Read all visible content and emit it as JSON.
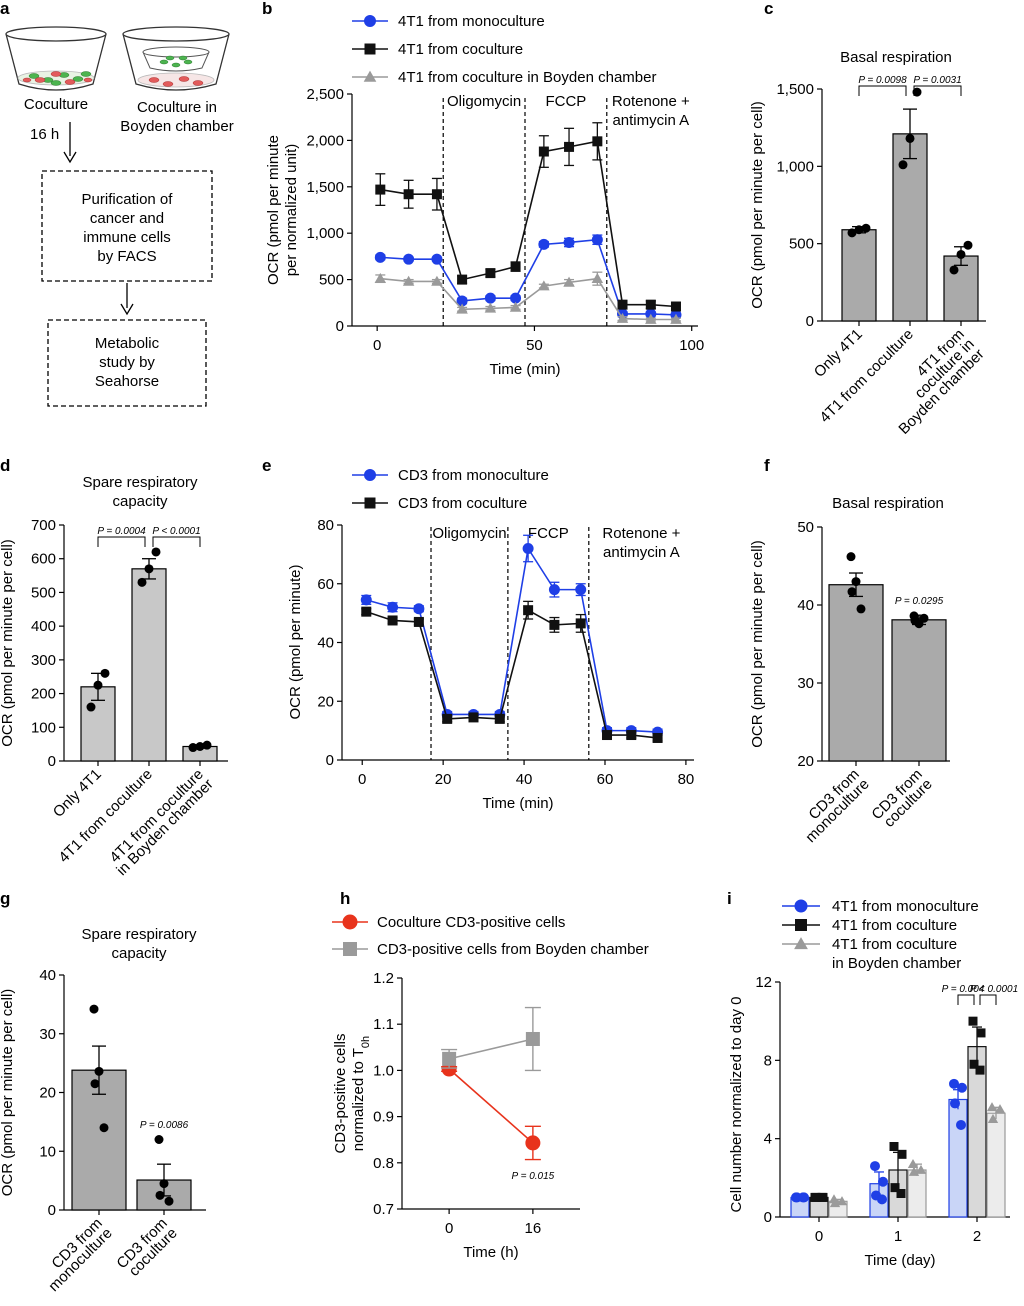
{
  "panel_labels": [
    "a",
    "b",
    "c",
    "d",
    "e",
    "f",
    "g",
    "h",
    "i"
  ],
  "flow": {
    "dish1_label": "Coculture",
    "dish2_label_lines": [
      "Coculture in",
      "Boyden chamber"
    ],
    "time_label": "16 h",
    "box1_lines": [
      "Purification of",
      "cancer and",
      "immune cells",
      "by FACS"
    ],
    "box2_lines": [
      "Metabolic",
      "study by",
      "Seahorse"
    ]
  },
  "colors": {
    "blue": "#1f3fe6",
    "black": "#111111",
    "gray": "#9a9a9a",
    "red": "#e8331c",
    "bar_gray": "#aaaaaa",
    "bar_light": "#c8c8c8"
  },
  "chart_data": [
    {
      "panel": "b",
      "type": "line",
      "ylabel_lines": [
        "OCR (pmol per minute",
        "per normalized unit)"
      ],
      "xlabel": "Time (min)",
      "xlim": [
        -8,
        102
      ],
      "ylim": [
        0,
        2500
      ],
      "xticks": [
        0,
        50,
        100
      ],
      "yticks": [
        0,
        500,
        1000,
        1500,
        2000,
        2500
      ],
      "ytick_labels": [
        "0",
        "500",
        "1,000",
        "1,500",
        "2,000",
        "2,500"
      ],
      "phase_lines": [
        21,
        47,
        73
      ],
      "phase_labels": [
        {
          "lines": [
            "Oligomycin"
          ],
          "x": 34
        },
        {
          "lines": [
            "FCCP"
          ],
          "x": 60
        },
        {
          "lines": [
            "Rotenone +",
            "antimycin A"
          ],
          "x": 87
        }
      ],
      "series": [
        {
          "name": "4T1 from monoculture",
          "color": "#1f3fe6",
          "marker": "circle",
          "x": [
            1,
            10,
            19,
            27,
            36,
            44,
            53,
            61,
            70,
            78,
            87,
            95
          ],
          "y": [
            740,
            720,
            720,
            270,
            300,
            300,
            880,
            900,
            930,
            130,
            130,
            120
          ],
          "err": [
            25,
            20,
            20,
            30,
            25,
            25,
            30,
            45,
            50,
            25,
            20,
            20
          ]
        },
        {
          "name": "4T1 from coculture",
          "color": "#111111",
          "marker": "square",
          "x": [
            1,
            10,
            19,
            27,
            36,
            44,
            53,
            61,
            70,
            78,
            87,
            95
          ],
          "y": [
            1470,
            1420,
            1420,
            500,
            570,
            640,
            1880,
            1930,
            1990,
            230,
            230,
            210
          ],
          "err": [
            170,
            150,
            170,
            40,
            40,
            50,
            170,
            200,
            200,
            40,
            40,
            40
          ]
        },
        {
          "name": "4T1 from coculture in Boyden chamber",
          "color": "#9a9a9a",
          "marker": "triangle",
          "x": [
            1,
            10,
            19,
            27,
            36,
            44,
            53,
            61,
            70,
            78,
            87,
            95
          ],
          "y": [
            510,
            480,
            480,
            180,
            190,
            200,
            430,
            470,
            510,
            80,
            70,
            70
          ],
          "err": [
            40,
            20,
            20,
            20,
            20,
            20,
            20,
            30,
            70,
            20,
            15,
            15
          ]
        }
      ]
    },
    {
      "panel": "c",
      "type": "bar",
      "title": "Basal respiration",
      "ylabel": "OCR (pmol per minute per cell)",
      "ylim": [
        0,
        1500
      ],
      "yticks": [
        0,
        500,
        1000,
        1500
      ],
      "ytick_labels": [
        "0",
        "500",
        "1,000",
        "1,500"
      ],
      "categories": [
        [
          "Only 4T1"
        ],
        [
          "4T1 from coculture"
        ],
        [
          "4T1 from",
          "coculture in",
          "Boyden chamber"
        ]
      ],
      "values": [
        590,
        1210,
        420
      ],
      "err": [
        20,
        160,
        60
      ],
      "points": [
        [
          570,
          590,
          600
        ],
        [
          1010,
          1180,
          1480
        ],
        [
          330,
          430,
          490
        ]
      ],
      "bar_color": "#aaaaaa",
      "comparisons": [
        {
          "from": 0,
          "to": 1,
          "label": "P = 0.0098"
        },
        {
          "from": 1,
          "to": 2,
          "label": "P = 0.0031"
        }
      ]
    },
    {
      "panel": "d",
      "type": "bar",
      "title_lines": [
        "Spare respiratory",
        "capacity"
      ],
      "ylabel": "OCR (pmol per minute per cell)",
      "ylim": [
        0,
        700
      ],
      "yticks": [
        0,
        100,
        200,
        300,
        400,
        500,
        600,
        700
      ],
      "ytick_labels": [
        "0",
        "100",
        "200",
        "300",
        "400",
        "500",
        "600",
        "700"
      ],
      "categories": [
        [
          "Only 4T1"
        ],
        [
          "4T1 from coculture"
        ],
        [
          "4T1 from coculture",
          "in Boyden chamber"
        ]
      ],
      "values": [
        220,
        570,
        43
      ],
      "err": [
        40,
        30,
        5
      ],
      "points": [
        [
          160,
          225,
          260
        ],
        [
          530,
          570,
          620
        ],
        [
          40,
          43,
          47
        ]
      ],
      "bar_color": "#c8c8c8",
      "comparisons": [
        {
          "from": 0,
          "to": 1,
          "label": "P = 0.0004"
        },
        {
          "from": 1,
          "to": 2,
          "label": "P < 0.0001"
        }
      ]
    },
    {
      "panel": "e",
      "type": "line",
      "ylabel": "OCR (pmol per minute)",
      "xlabel": "Time (min)",
      "xlim": [
        -5,
        82
      ],
      "ylim": [
        0,
        80
      ],
      "xticks": [
        0,
        20,
        40,
        60,
        80
      ],
      "yticks": [
        0,
        20,
        40,
        60,
        80
      ],
      "phase_lines": [
        17,
        36,
        56
      ],
      "phase_labels": [
        {
          "lines": [
            "Oligomycin"
          ],
          "x": 26.5
        },
        {
          "lines": [
            "FCCP"
          ],
          "x": 46
        },
        {
          "lines": [
            "Rotenone +",
            "antimycin A"
          ],
          "x": 69
        }
      ],
      "series": [
        {
          "name": "CD3 from monoculture",
          "color": "#1f3fe6",
          "marker": "circle",
          "x": [
            1,
            7.5,
            14,
            21,
            27.5,
            34,
            41,
            47.5,
            54,
            60.5,
            66.5,
            73
          ],
          "y": [
            54.5,
            52,
            51.5,
            15.5,
            15.5,
            15.5,
            72,
            58,
            58,
            10,
            10,
            9.5
          ],
          "err": [
            1.5,
            1.5,
            1,
            1,
            1,
            1,
            4.5,
            2.5,
            2,
            1,
            1,
            1
          ]
        },
        {
          "name": "CD3 from coculture",
          "color": "#111111",
          "marker": "square",
          "x": [
            1,
            7.5,
            14,
            21,
            27.5,
            34,
            41,
            47.5,
            54,
            60.5,
            66.5,
            73
          ],
          "y": [
            50.5,
            47.5,
            47,
            14,
            14.5,
            14,
            51,
            46,
            46.5,
            8.5,
            8.5,
            7.5
          ],
          "err": [
            1,
            1,
            1,
            1,
            1,
            1,
            3,
            2.5,
            3,
            1,
            1,
            1
          ]
        }
      ]
    },
    {
      "panel": "f",
      "type": "bar",
      "title": "Basal respiration",
      "ylabel": "OCR (pmol per minute per cell)",
      "ylim": [
        20,
        50
      ],
      "yticks": [
        20,
        30,
        40,
        50
      ],
      "categories": [
        [
          "CD3 from",
          "monoculture"
        ],
        [
          "CD3 from",
          "coculture"
        ]
      ],
      "values": [
        42.6,
        38.1
      ],
      "err": [
        1.5,
        0.6
      ],
      "points": [
        [
          46.2,
          43,
          41.7,
          39.5
        ],
        [
          38.6,
          37.6,
          38,
          38.3
        ]
      ],
      "bar_color": "#aaaaaa",
      "annotations": [
        {
          "bar": 1,
          "label": "P = 0.0295"
        }
      ]
    },
    {
      "panel": "g",
      "type": "bar",
      "title_lines": [
        "Spare respiratory",
        "capacity"
      ],
      "ylabel": "OCR (pmol per minute per cell)",
      "ylim": [
        0,
        40
      ],
      "yticks": [
        0,
        10,
        20,
        30,
        40
      ],
      "categories": [
        [
          "CD3 from",
          "monoculture"
        ],
        [
          "CD3 from",
          "coculture"
        ]
      ],
      "values": [
        23.8,
        5.1
      ],
      "err": [
        4.1,
        2.7
      ],
      "points": [
        [
          34.2,
          23.6,
          21.5,
          14
        ],
        [
          12,
          4.5,
          2.5,
          1.5
        ]
      ],
      "bar_color": "#aaaaaa",
      "annotations": [
        {
          "bar": 1,
          "label": "P = 0.0086"
        }
      ]
    },
    {
      "panel": "h",
      "type": "line",
      "ylabel_lines": [
        "CD3-positive cells",
        "normalized to T"
      ],
      "ylabel_sub": "0h",
      "xlabel": "Time (h)",
      "xlim": [
        -9,
        25
      ],
      "ylim": [
        0.7,
        1.2
      ],
      "xticks": [
        0,
        16
      ],
      "yticks": [
        0.7,
        0.8,
        0.9,
        1.0,
        1.1,
        1.2
      ],
      "ytick_labels": [
        "0.7",
        "0.8",
        "0.9",
        "1.0",
        "1.1",
        "1.2"
      ],
      "series": [
        {
          "name": "Coculture CD3-positive cells",
          "color": "#e8331c",
          "marker": "circle",
          "x": [
            0,
            16
          ],
          "y": [
            1.003,
            0.843
          ],
          "err": [
            0.005,
            0.036
          ]
        },
        {
          "name": "CD3-positive cells from Boyden chamber",
          "color": "#9a9a9a",
          "marker": "square",
          "x": [
            0,
            16
          ],
          "y": [
            1.025,
            1.068
          ],
          "err": [
            0.02,
            0.068
          ]
        }
      ],
      "annotations": [
        {
          "label": "P = 0.015",
          "x": 16,
          "y": 0.795
        }
      ]
    },
    {
      "panel": "i",
      "type": "bar",
      "ylabel": "Cell number normalized to day 0",
      "xlabel": "Time (day)",
      "ylim": [
        0,
        12
      ],
      "yticks": [
        0,
        4,
        8,
        12
      ],
      "categories": [
        "0",
        "1",
        "2"
      ],
      "series": [
        {
          "name": "4T1 from monoculture",
          "color": "#1f3fe6",
          "fill": "#c9d5f7",
          "marker": "circle",
          "values": [
            1.0,
            1.7,
            6.0
          ],
          "err": [
            0.05,
            0.6,
            0.5
          ],
          "points": [
            [
              1,
              1,
              1,
              1
            ],
            [
              2.6,
              1.8,
              1.1,
              0.9
            ],
            [
              6.8,
              6.6,
              5.8,
              4.7
            ]
          ]
        },
        {
          "name": "4T1 from coculture",
          "color": "#111111",
          "fill": "#d9d9d9",
          "marker": "square",
          "values": [
            1.0,
            2.4,
            8.7
          ],
          "err": [
            0.05,
            0.9,
            1.0
          ],
          "points": [
            [
              1,
              1,
              1,
              1
            ],
            [
              3.6,
              3.2,
              1.5,
              1.2
            ],
            [
              10.0,
              9.4,
              7.8,
              7.5
            ]
          ]
        },
        {
          "name": "4T1 from coculture in Boyden chamber",
          "color": "#9a9a9a",
          "fill": "#ececec",
          "marker": "triangle",
          "values": [
            0.8,
            2.4,
            5.3
          ],
          "err": [
            0.1,
            0.3,
            0.3
          ],
          "points": [
            [
              0.9,
              0.8,
              0.7
            ],
            [
              2.7,
              2.4,
              2.3
            ],
            [
              5.6,
              5.5,
              5.0
            ]
          ]
        }
      ],
      "comparisons": [
        {
          "group": 2,
          "from": 0,
          "to": 1,
          "label": "P = 0.004"
        },
        {
          "group": 2,
          "from": 1,
          "to": 2,
          "label": "P < 0.0001"
        }
      ]
    }
  ]
}
